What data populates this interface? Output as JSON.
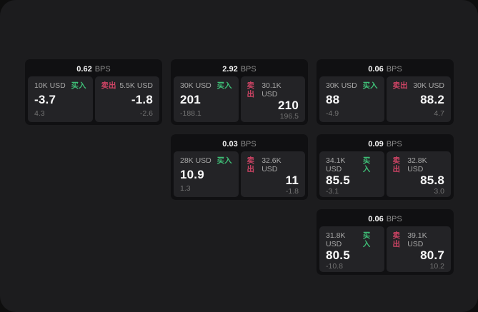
{
  "labels": {
    "bps_suffix": "BPS",
    "buy": "买入",
    "sell": "卖出"
  },
  "colors": {
    "background": "#0e0e0e",
    "screen": "#1c1c1e",
    "card": "#101012",
    "panel": "#232326",
    "buy_green": "#3fbf77",
    "sell_red": "#cf4465",
    "price_white": "#fafafa",
    "label_gray": "#a8a8a8",
    "sub_gray": "#737373"
  },
  "cards": [
    {
      "bps": "0.62",
      "buy": {
        "size": "10K USD",
        "price": "-3.7",
        "sub": "4.3"
      },
      "sell": {
        "size": "5.5K USD",
        "price": "-1.8",
        "sub": "-2.6"
      }
    },
    {
      "bps": "2.92",
      "buy": {
        "size": "30K USD",
        "price": "201",
        "sub": "-188.1"
      },
      "sell": {
        "size": "30.1K USD",
        "price": "210",
        "sub": "196.5"
      }
    },
    {
      "bps": "0.06",
      "buy": {
        "size": "30K USD",
        "price": "88",
        "sub": "-4.9"
      },
      "sell": {
        "size": "30K USD",
        "price": "88.2",
        "sub": "4.7"
      }
    },
    {
      "bps": "0.03",
      "buy": {
        "size": "28K USD",
        "price": "10.9",
        "sub": "1.3"
      },
      "sell": {
        "size": "32.6K USD",
        "price": "11",
        "sub": "-1.8"
      }
    },
    {
      "bps": "0.09",
      "buy": {
        "size": "34.1K USD",
        "price": "85.5",
        "sub": "-3.1"
      },
      "sell": {
        "size": "32.8K USD",
        "price": "85.8",
        "sub": "3.0"
      }
    },
    {
      "bps": "0.06",
      "buy": {
        "size": "31.8K USD",
        "price": "80.5",
        "sub": "-10.8"
      },
      "sell": {
        "size": "39.1K USD",
        "price": "80.7",
        "sub": "10.2"
      }
    }
  ]
}
